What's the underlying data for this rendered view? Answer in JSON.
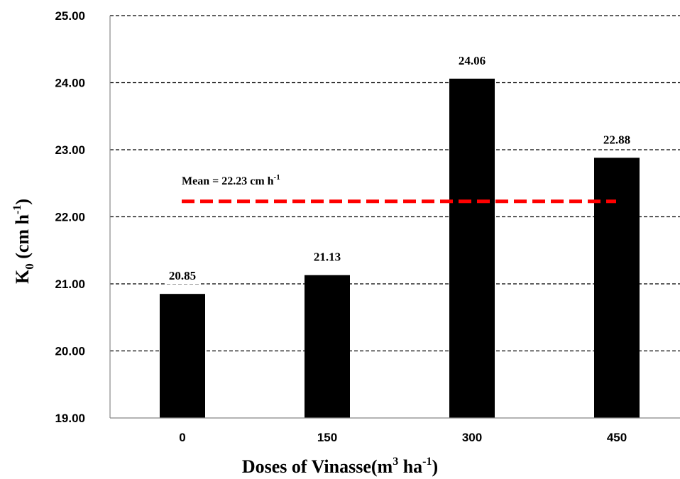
{
  "chart_data": {
    "type": "bar",
    "categories": [
      "0",
      "150",
      "300",
      "450"
    ],
    "values": [
      20.85,
      21.13,
      24.06,
      22.88
    ],
    "data_labels": [
      "20.85",
      "21.13",
      "24.06",
      "22.88"
    ],
    "y_ticks": [
      "19.00",
      "20.00",
      "21.00",
      "22.00",
      "23.00",
      "24.00",
      "25.00"
    ],
    "ylim": [
      19,
      25
    ],
    "grid": true,
    "grid_style": "dashed",
    "bar_color": "#000000",
    "xlabel": {
      "main": "Doses of Vinasse(m",
      "sup1": "3",
      "mid": " ha",
      "sup2": "-1",
      "end": ")"
    },
    "ylabel": {
      "main": "K",
      "sub": "0",
      "mid": " (cm h",
      "sup": "-1",
      "end": ")"
    },
    "reference_line": {
      "value": 22.23,
      "color": "#ff0000",
      "label": {
        "main": "Mean = 22.23 cm h",
        "sup": "-1"
      }
    }
  }
}
